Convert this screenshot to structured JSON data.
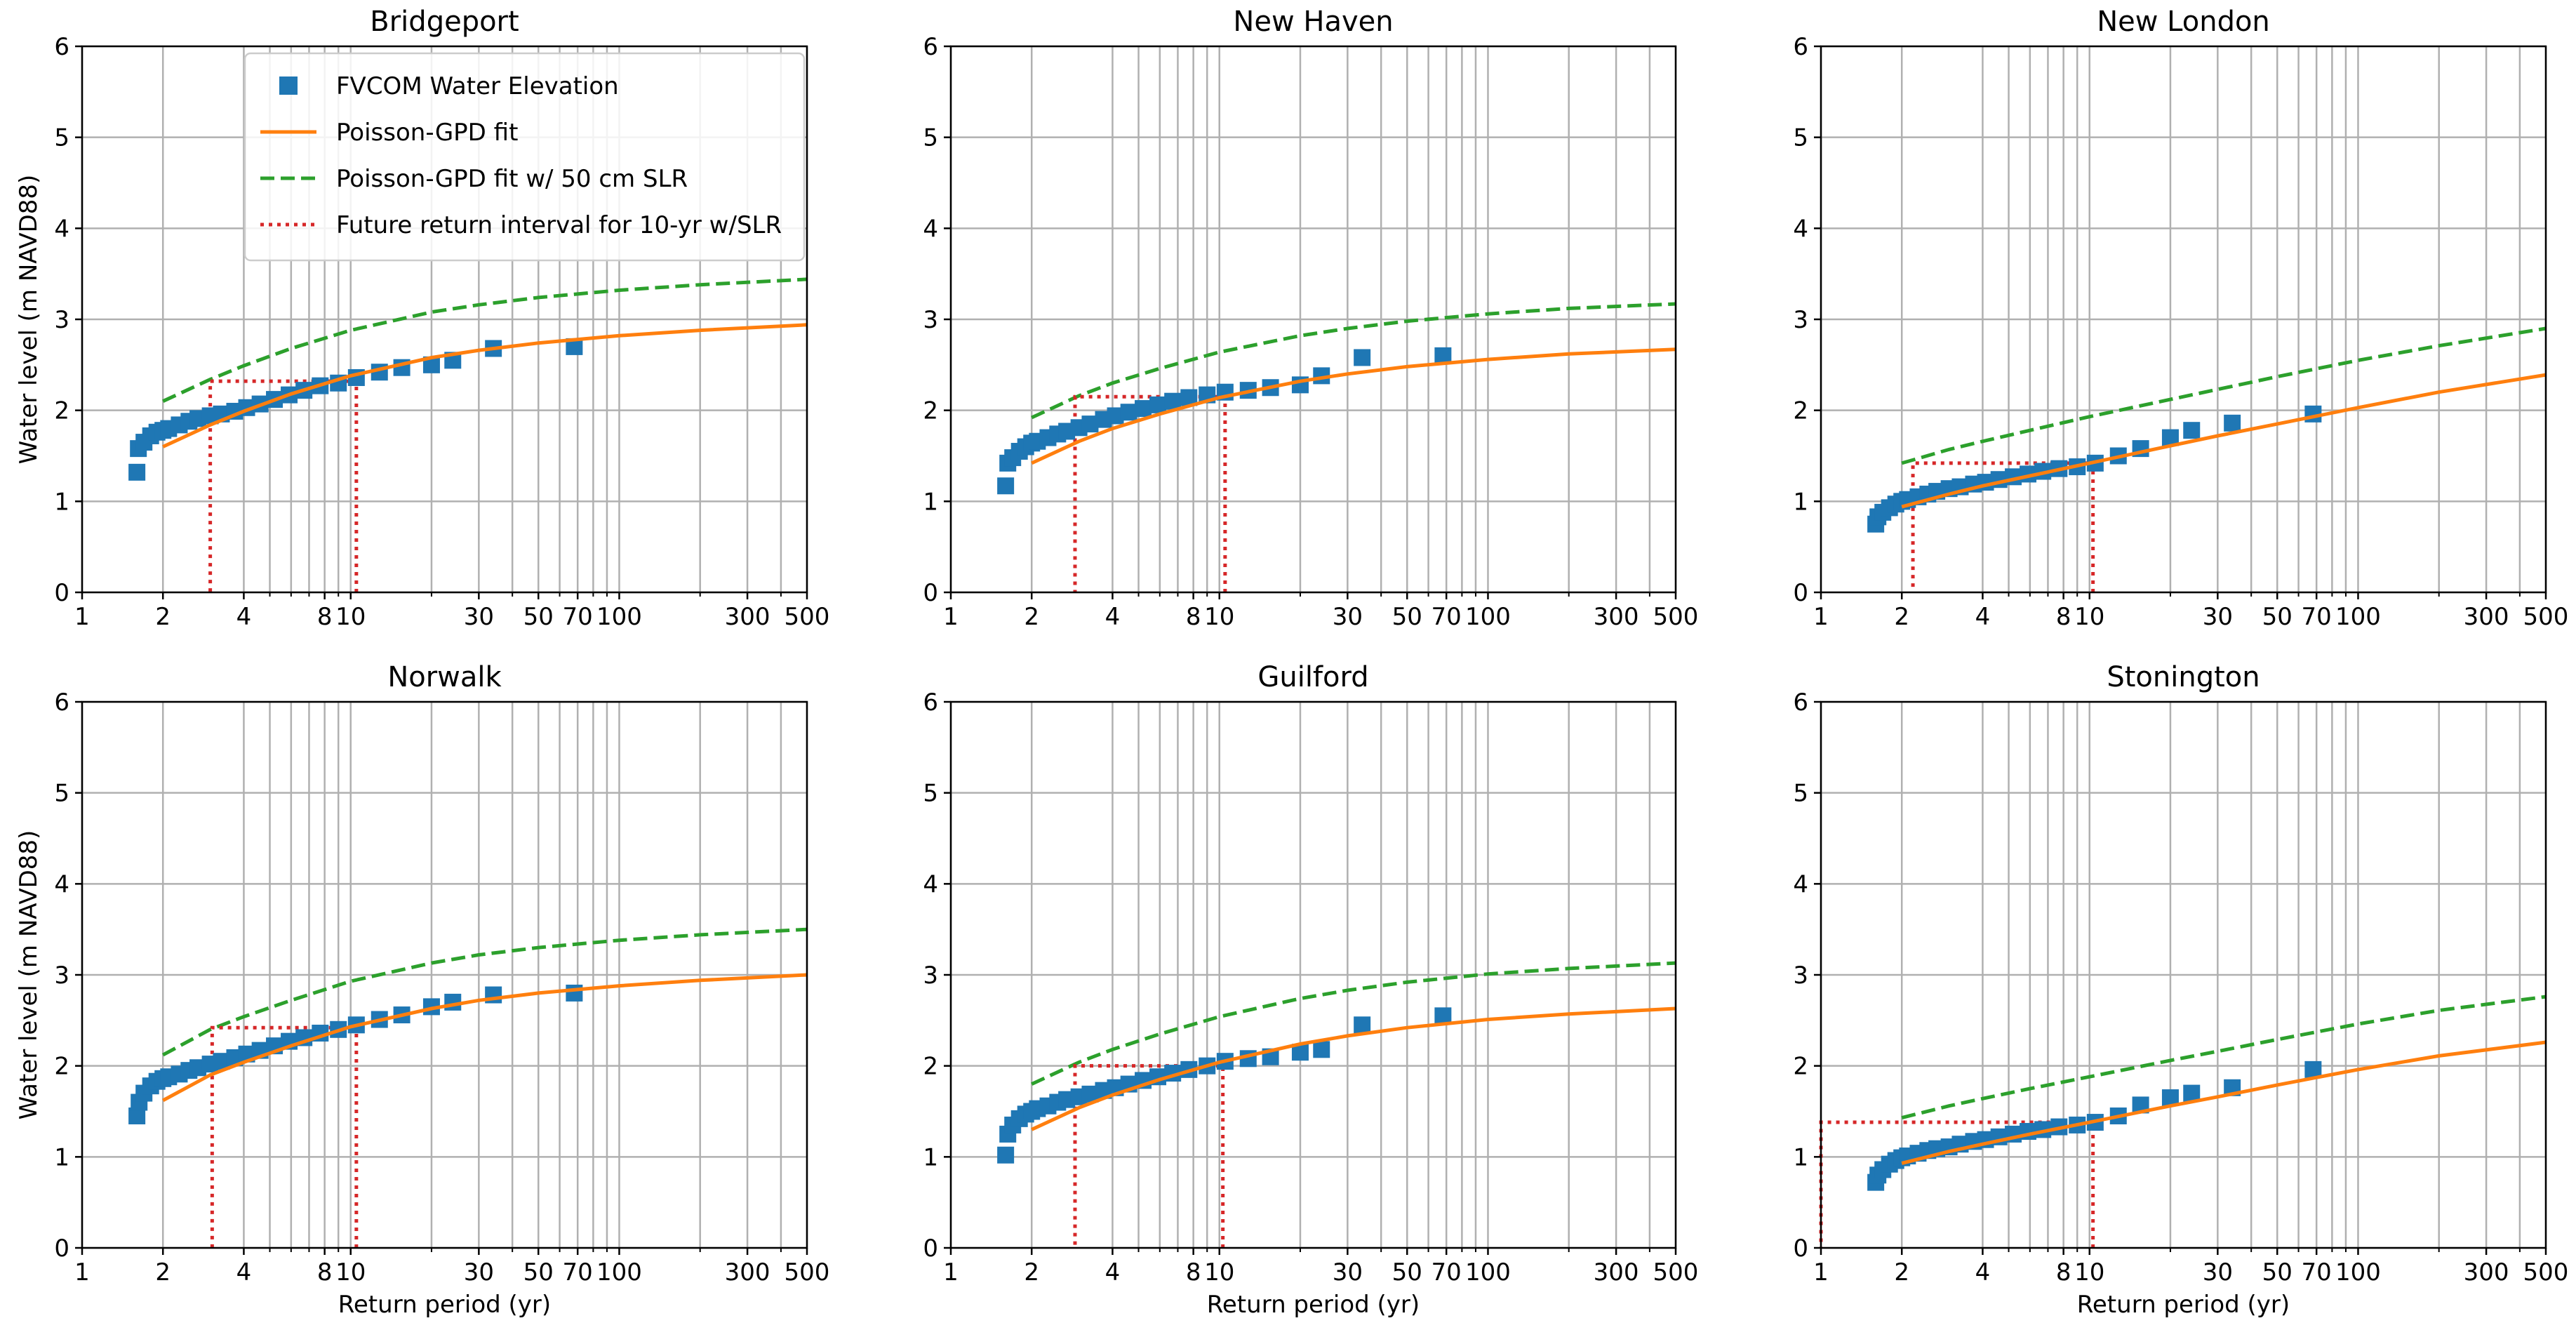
{
  "figure": {
    "x_label": "Return period (yr)",
    "y_label": "Water level (m NAVD88)"
  },
  "legend": {
    "placement": "upper-left of first panel",
    "entries": [
      {
        "key": "obs",
        "label": "FVCOM Water Elevation",
        "style": "square",
        "color": "#1f77b4"
      },
      {
        "key": "fit",
        "label": "Poisson-GPD fit",
        "style": "solid",
        "color": "#ff7f0e"
      },
      {
        "key": "slr",
        "label": "Poisson-GPD fit w/ 50 cm SLR",
        "style": "dashed",
        "color": "#2ca02c"
      },
      {
        "key": "future",
        "label": "Future return interval for 10-yr w/SLR",
        "style": "dotted",
        "color": "#d62728"
      }
    ]
  },
  "chart_data": [
    {
      "type": "scatter+line",
      "title": "Bridgeport",
      "xscale": "log",
      "xlim": [
        1,
        500
      ],
      "ylim": [
        0,
        6
      ],
      "xticks": [
        1,
        2,
        4,
        8,
        10,
        30,
        50,
        70,
        100,
        300,
        500
      ],
      "xtick_labels": [
        "1",
        "2",
        "4",
        "8",
        "10",
        "30",
        "50",
        "70",
        "100",
        "300",
        "500"
      ],
      "yticks": [
        0,
        1,
        2,
        3,
        4,
        5,
        6
      ],
      "grid": true,
      "obs_points": [
        [
          1.6,
          1.32
        ],
        [
          1.62,
          1.58
        ],
        [
          1.7,
          1.65
        ],
        [
          1.8,
          1.72
        ],
        [
          1.9,
          1.76
        ],
        [
          2.0,
          1.78
        ],
        [
          2.1,
          1.8
        ],
        [
          2.3,
          1.84
        ],
        [
          2.5,
          1.88
        ],
        [
          2.7,
          1.91
        ],
        [
          3.0,
          1.94
        ],
        [
          3.3,
          1.96
        ],
        [
          3.7,
          1.99
        ],
        [
          4.1,
          2.03
        ],
        [
          4.6,
          2.07
        ],
        [
          5.2,
          2.12
        ],
        [
          5.9,
          2.17
        ],
        [
          6.7,
          2.22
        ],
        [
          7.7,
          2.27
        ],
        [
          9.0,
          2.3
        ],
        [
          10.5,
          2.36
        ],
        [
          12.8,
          2.42
        ],
        [
          15.5,
          2.47
        ],
        [
          20.0,
          2.5
        ],
        [
          24.0,
          2.55
        ],
        [
          34.0,
          2.68
        ],
        [
          68.0,
          2.7
        ]
      ],
      "fit": {
        "x": [
          2,
          3,
          4,
          6,
          10,
          20,
          30,
          50,
          100,
          200,
          500
        ],
        "y": [
          1.6,
          1.84,
          1.99,
          2.18,
          2.38,
          2.58,
          2.66,
          2.74,
          2.82,
          2.88,
          2.94
        ]
      },
      "fit_slr": {
        "x": [
          2,
          3,
          4,
          6,
          10,
          20,
          30,
          50,
          100,
          200,
          500
        ],
        "y": [
          2.1,
          2.34,
          2.49,
          2.68,
          2.88,
          3.08,
          3.16,
          3.24,
          3.32,
          3.38,
          3.44
        ]
      },
      "future_interval": {
        "level": 2.32,
        "return_period_now": 10.5,
        "return_period_future": 3.0
      }
    },
    {
      "type": "scatter+line",
      "title": "New Haven",
      "xscale": "log",
      "xlim": [
        1,
        500
      ],
      "ylim": [
        0,
        6
      ],
      "xticks": [
        1,
        2,
        4,
        8,
        10,
        30,
        50,
        70,
        100,
        300,
        500
      ],
      "xtick_labels": [
        "1",
        "2",
        "4",
        "8",
        "10",
        "30",
        "50",
        "70",
        "100",
        "300",
        "500"
      ],
      "yticks": [
        0,
        1,
        2,
        3,
        4,
        5,
        6
      ],
      "grid": true,
      "obs_points": [
        [
          1.6,
          1.17
        ],
        [
          1.63,
          1.42
        ],
        [
          1.7,
          1.48
        ],
        [
          1.8,
          1.55
        ],
        [
          1.9,
          1.6
        ],
        [
          2.0,
          1.64
        ],
        [
          2.1,
          1.66
        ],
        [
          2.3,
          1.7
        ],
        [
          2.5,
          1.74
        ],
        [
          2.7,
          1.77
        ],
        [
          3.0,
          1.81
        ],
        [
          3.3,
          1.85
        ],
        [
          3.7,
          1.9
        ],
        [
          4.1,
          1.94
        ],
        [
          4.6,
          1.98
        ],
        [
          5.2,
          2.02
        ],
        [
          5.9,
          2.06
        ],
        [
          6.7,
          2.1
        ],
        [
          7.7,
          2.14
        ],
        [
          9.0,
          2.17
        ],
        [
          10.5,
          2.2
        ],
        [
          12.8,
          2.22
        ],
        [
          15.5,
          2.25
        ],
        [
          20.0,
          2.28
        ],
        [
          24.0,
          2.38
        ],
        [
          34.0,
          2.58
        ],
        [
          68.0,
          2.6
        ]
      ],
      "fit": {
        "x": [
          2,
          3,
          4,
          6,
          10,
          20,
          30,
          50,
          100,
          200,
          500
        ],
        "y": [
          1.42,
          1.66,
          1.8,
          1.96,
          2.14,
          2.32,
          2.4,
          2.48,
          2.56,
          2.62,
          2.67
        ]
      },
      "fit_slr": {
        "x": [
          2,
          3,
          4,
          6,
          10,
          20,
          30,
          50,
          100,
          200,
          500
        ],
        "y": [
          1.92,
          2.16,
          2.3,
          2.46,
          2.64,
          2.82,
          2.9,
          2.98,
          3.06,
          3.12,
          3.17
        ]
      },
      "future_interval": {
        "level": 2.15,
        "return_period_now": 10.5,
        "return_period_future": 2.9
      }
    },
    {
      "type": "scatter+line",
      "title": "New London",
      "xscale": "log",
      "xlim": [
        1,
        500
      ],
      "ylim": [
        0,
        6
      ],
      "xticks": [
        1,
        2,
        4,
        8,
        10,
        30,
        50,
        70,
        100,
        300,
        500
      ],
      "xtick_labels": [
        "1",
        "2",
        "4",
        "8",
        "10",
        "30",
        "50",
        "70",
        "100",
        "300",
        "500"
      ],
      "yticks": [
        0,
        1,
        2,
        3,
        4,
        5,
        6
      ],
      "grid": true,
      "obs_points": [
        [
          1.6,
          0.75
        ],
        [
          1.63,
          0.83
        ],
        [
          1.7,
          0.88
        ],
        [
          1.8,
          0.93
        ],
        [
          1.9,
          0.97
        ],
        [
          2.0,
          1.0
        ],
        [
          2.1,
          1.02
        ],
        [
          2.3,
          1.05
        ],
        [
          2.5,
          1.08
        ],
        [
          2.7,
          1.11
        ],
        [
          3.0,
          1.14
        ],
        [
          3.3,
          1.16
        ],
        [
          3.7,
          1.19
        ],
        [
          4.1,
          1.21
        ],
        [
          4.6,
          1.24
        ],
        [
          5.2,
          1.27
        ],
        [
          5.9,
          1.3
        ],
        [
          6.7,
          1.33
        ],
        [
          7.7,
          1.36
        ],
        [
          9.0,
          1.38
        ],
        [
          10.5,
          1.42
        ],
        [
          12.8,
          1.5
        ],
        [
          15.5,
          1.58
        ],
        [
          20.0,
          1.7
        ],
        [
          24.0,
          1.78
        ],
        [
          34.0,
          1.86
        ],
        [
          68.0,
          1.96
        ]
      ],
      "fit": {
        "x": [
          2,
          3,
          4,
          6,
          10,
          20,
          30,
          50,
          100,
          200,
          500
        ],
        "y": [
          0.94,
          1.08,
          1.17,
          1.28,
          1.42,
          1.61,
          1.72,
          1.85,
          2.03,
          2.2,
          2.39
        ]
      },
      "fit_slr": {
        "x": [
          2,
          3,
          4,
          6,
          10,
          20,
          30,
          50,
          100,
          200,
          500
        ],
        "y": [
          1.42,
          1.57,
          1.66,
          1.78,
          1.93,
          2.12,
          2.23,
          2.37,
          2.55,
          2.71,
          2.9
        ]
      },
      "future_interval": {
        "level": 1.42,
        "return_period_now": 10.3,
        "return_period_future": 2.2
      }
    },
    {
      "type": "scatter+line",
      "title": "Norwalk",
      "xscale": "log",
      "xlim": [
        1,
        500
      ],
      "ylim": [
        0,
        6
      ],
      "xticks": [
        1,
        2,
        4,
        8,
        10,
        30,
        50,
        70,
        100,
        300,
        500
      ],
      "xtick_labels": [
        "1",
        "2",
        "4",
        "8",
        "10",
        "30",
        "50",
        "70",
        "100",
        "300",
        "500"
      ],
      "yticks": [
        0,
        1,
        2,
        3,
        4,
        5,
        6
      ],
      "grid": true,
      "obs_points": [
        [
          1.6,
          1.45
        ],
        [
          1.63,
          1.6
        ],
        [
          1.7,
          1.7
        ],
        [
          1.8,
          1.78
        ],
        [
          1.9,
          1.83
        ],
        [
          2.0,
          1.86
        ],
        [
          2.1,
          1.88
        ],
        [
          2.3,
          1.91
        ],
        [
          2.5,
          1.95
        ],
        [
          2.7,
          1.98
        ],
        [
          3.0,
          2.02
        ],
        [
          3.3,
          2.05
        ],
        [
          3.7,
          2.09
        ],
        [
          4.1,
          2.13
        ],
        [
          4.6,
          2.17
        ],
        [
          5.2,
          2.22
        ],
        [
          5.9,
          2.27
        ],
        [
          6.7,
          2.31
        ],
        [
          7.7,
          2.36
        ],
        [
          9.0,
          2.4
        ],
        [
          10.5,
          2.45
        ],
        [
          12.8,
          2.51
        ],
        [
          15.5,
          2.56
        ],
        [
          20.0,
          2.65
        ],
        [
          24.0,
          2.7
        ],
        [
          34.0,
          2.78
        ],
        [
          68.0,
          2.8
        ]
      ],
      "fit": {
        "x": [
          2,
          3,
          4,
          6,
          10,
          20,
          30,
          50,
          100,
          200,
          500
        ],
        "y": [
          1.62,
          1.9,
          2.04,
          2.22,
          2.43,
          2.63,
          2.72,
          2.8,
          2.88,
          2.94,
          3.0
        ]
      },
      "fit_slr": {
        "x": [
          2,
          3,
          4,
          6,
          10,
          20,
          30,
          50,
          100,
          200,
          500
        ],
        "y": [
          2.12,
          2.4,
          2.54,
          2.72,
          2.93,
          3.13,
          3.22,
          3.3,
          3.38,
          3.44,
          3.5
        ]
      },
      "future_interval": {
        "level": 2.42,
        "return_period_now": 10.5,
        "return_period_future": 3.05
      }
    },
    {
      "type": "scatter+line",
      "title": "Guilford",
      "xscale": "log",
      "xlim": [
        1,
        500
      ],
      "ylim": [
        0,
        6
      ],
      "xticks": [
        1,
        2,
        4,
        8,
        10,
        30,
        50,
        70,
        100,
        300,
        500
      ],
      "xtick_labels": [
        "1",
        "2",
        "4",
        "8",
        "10",
        "30",
        "50",
        "70",
        "100",
        "300",
        "500"
      ],
      "yticks": [
        0,
        1,
        2,
        3,
        4,
        5,
        6
      ],
      "grid": true,
      "obs_points": [
        [
          1.6,
          1.02
        ],
        [
          1.63,
          1.25
        ],
        [
          1.7,
          1.35
        ],
        [
          1.8,
          1.42
        ],
        [
          1.9,
          1.47
        ],
        [
          2.0,
          1.5
        ],
        [
          2.1,
          1.53
        ],
        [
          2.3,
          1.56
        ],
        [
          2.5,
          1.6
        ],
        [
          2.7,
          1.63
        ],
        [
          3.0,
          1.66
        ],
        [
          3.3,
          1.69
        ],
        [
          3.7,
          1.73
        ],
        [
          4.1,
          1.76
        ],
        [
          4.6,
          1.8
        ],
        [
          5.2,
          1.84
        ],
        [
          5.9,
          1.88
        ],
        [
          6.7,
          1.92
        ],
        [
          7.7,
          1.96
        ],
        [
          9.0,
          2.0
        ],
        [
          10.5,
          2.05
        ],
        [
          12.8,
          2.08
        ],
        [
          15.5,
          2.1
        ],
        [
          20.0,
          2.15
        ],
        [
          24.0,
          2.18
        ],
        [
          34.0,
          2.45
        ],
        [
          68.0,
          2.55
        ]
      ],
      "fit": {
        "x": [
          2,
          3,
          4,
          6,
          10,
          20,
          30,
          50,
          100,
          200,
          500
        ],
        "y": [
          1.3,
          1.54,
          1.68,
          1.85,
          2.04,
          2.24,
          2.33,
          2.42,
          2.51,
          2.57,
          2.63
        ]
      },
      "fit_slr": {
        "x": [
          2,
          3,
          4,
          6,
          10,
          20,
          30,
          50,
          100,
          200,
          500
        ],
        "y": [
          1.8,
          2.04,
          2.18,
          2.35,
          2.54,
          2.74,
          2.83,
          2.92,
          3.01,
          3.07,
          3.13
        ]
      },
      "future_interval": {
        "level": 2.0,
        "return_period_now": 10.3,
        "return_period_future": 2.9
      }
    },
    {
      "type": "scatter+line",
      "title": "Stonington",
      "xscale": "log",
      "xlim": [
        1,
        500
      ],
      "ylim": [
        0,
        6
      ],
      "xticks": [
        1,
        2,
        4,
        8,
        10,
        30,
        50,
        70,
        100,
        300,
        500
      ],
      "xtick_labels": [
        "1",
        "2",
        "4",
        "8",
        "10",
        "30",
        "50",
        "70",
        "100",
        "300",
        "500"
      ],
      "yticks": [
        0,
        1,
        2,
        3,
        4,
        5,
        6
      ],
      "grid": true,
      "obs_points": [
        [
          1.6,
          0.72
        ],
        [
          1.63,
          0.8
        ],
        [
          1.7,
          0.86
        ],
        [
          1.8,
          0.92
        ],
        [
          1.9,
          0.96
        ],
        [
          2.0,
          0.99
        ],
        [
          2.1,
          1.01
        ],
        [
          2.3,
          1.04
        ],
        [
          2.5,
          1.07
        ],
        [
          2.7,
          1.09
        ],
        [
          3.0,
          1.11
        ],
        [
          3.3,
          1.14
        ],
        [
          3.7,
          1.17
        ],
        [
          4.1,
          1.19
        ],
        [
          4.6,
          1.22
        ],
        [
          5.2,
          1.25
        ],
        [
          5.9,
          1.28
        ],
        [
          6.7,
          1.3
        ],
        [
          7.7,
          1.33
        ],
        [
          9.0,
          1.35
        ],
        [
          10.5,
          1.38
        ],
        [
          12.8,
          1.45
        ],
        [
          15.5,
          1.57
        ],
        [
          20.0,
          1.65
        ],
        [
          24.0,
          1.7
        ],
        [
          34.0,
          1.76
        ],
        [
          68.0,
          1.96
        ]
      ],
      "fit": {
        "x": [
          2,
          3,
          4,
          6,
          10,
          20,
          30,
          50,
          100,
          200,
          500
        ],
        "y": [
          0.93,
          1.06,
          1.14,
          1.25,
          1.38,
          1.56,
          1.66,
          1.79,
          1.96,
          2.11,
          2.26
        ]
      },
      "fit_slr": {
        "x": [
          2,
          3,
          4,
          6,
          10,
          20,
          30,
          50,
          100,
          200,
          500
        ],
        "y": [
          1.43,
          1.56,
          1.64,
          1.75,
          1.88,
          2.06,
          2.16,
          2.29,
          2.46,
          2.61,
          2.76
        ]
      },
      "future_interval": {
        "level": 1.38,
        "return_period_now": 10.3,
        "return_period_future": 1.0
      }
    }
  ]
}
